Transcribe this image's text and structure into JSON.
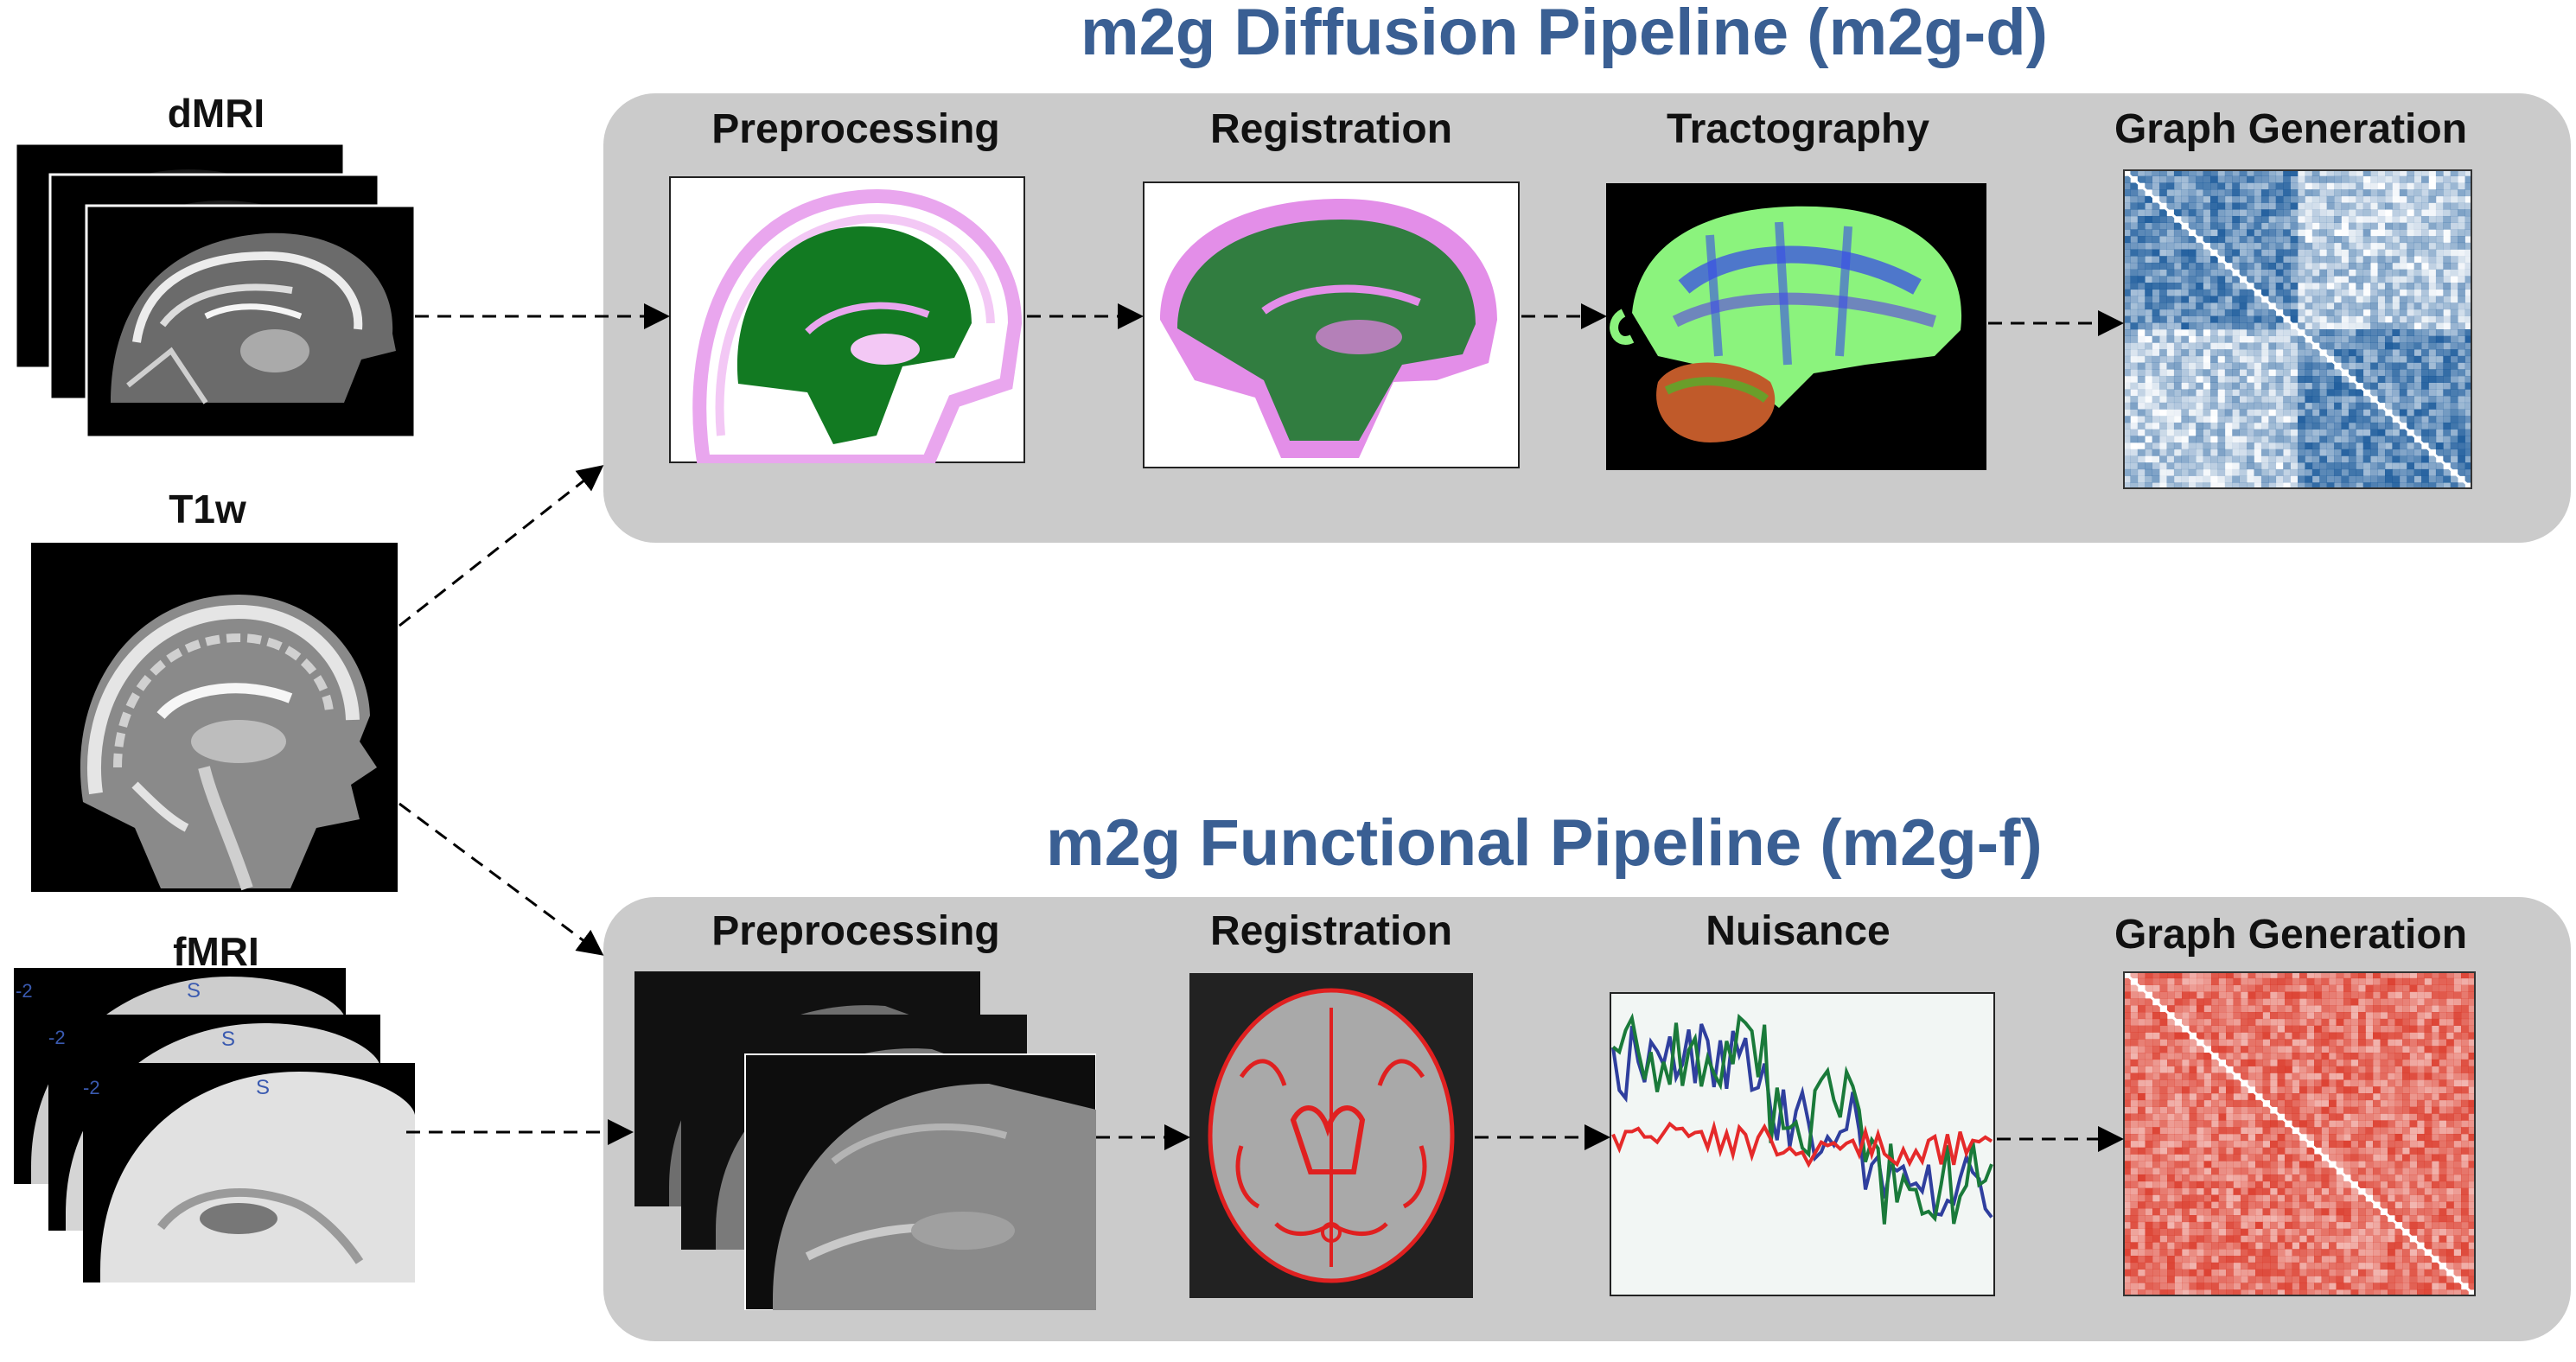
{
  "inputs": {
    "dmri": "dMRI",
    "t1w": "T1w",
    "fmri": "fMRI",
    "fmri_slice_marker": "S",
    "fmri_edge_marker": "-2"
  },
  "diffusion": {
    "title": "m2g Diffusion Pipeline (m2g-d)",
    "stages": [
      "Preprocessing",
      "Registration",
      "Tractography",
      "Graph Generation"
    ]
  },
  "functional": {
    "title": "m2g Functional Pipeline (m2g-f)",
    "stages": [
      "Preprocessing",
      "Registration",
      "Nuisance",
      "Graph Generation"
    ]
  },
  "colors": {
    "title": "#3a5f93",
    "panel": "#cbcbcb",
    "seg_green": "#127a22",
    "seg_pink": "#e38ee8",
    "tract_green": "#8bf37d",
    "tract_blue": "#3a4ee6",
    "nuisance_green": "#1a7a3a",
    "nuisance_blue": "#2f3f9e",
    "nuisance_red": "#e52a2a",
    "matrix_blue": "#0b4f94",
    "matrix_red": "#d92f1e"
  }
}
